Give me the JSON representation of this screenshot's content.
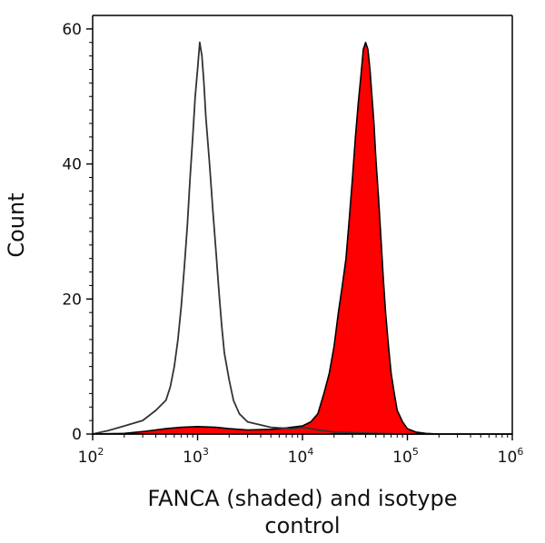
{
  "chart_data": {
    "type": "area",
    "xlabel_lines": [
      "FANCA (shaded) and isotype",
      "control"
    ],
    "ylabel": "Count",
    "x_scale": "log10",
    "xlim": [
      100,
      1000000
    ],
    "ylim": [
      0,
      62
    ],
    "grid": false,
    "x_ticks": [
      {
        "base": "10",
        "exp": "2"
      },
      {
        "base": "10",
        "exp": "3"
      },
      {
        "base": "10",
        "exp": "4"
      },
      {
        "base": "10",
        "exp": "5"
      },
      {
        "base": "10",
        "exp": "6"
      }
    ],
    "y_ticks": [
      "0",
      "20",
      "40",
      "60"
    ],
    "series": [
      {
        "style": "shaded",
        "fill": "#ff0000",
        "stroke": "#000000",
        "points": [
          [
            100,
            0
          ],
          [
            200,
            0.1
          ],
          [
            316,
            0.4
          ],
          [
            500,
            0.8
          ],
          [
            700,
            1.0
          ],
          [
            1000,
            1.1
          ],
          [
            1500,
            1.0
          ],
          [
            2000,
            0.8
          ],
          [
            3000,
            0.6
          ],
          [
            5000,
            0.7
          ],
          [
            7000,
            0.9
          ],
          [
            10000,
            1.2
          ],
          [
            12000,
            1.8
          ],
          [
            14000,
            3.0
          ],
          [
            16000,
            6
          ],
          [
            18000,
            9
          ],
          [
            20000,
            13
          ],
          [
            22000,
            18
          ],
          [
            24000,
            22
          ],
          [
            26000,
            26
          ],
          [
            28000,
            32
          ],
          [
            30000,
            38
          ],
          [
            32000,
            44
          ],
          [
            34000,
            49
          ],
          [
            36000,
            53
          ],
          [
            38000,
            57
          ],
          [
            40000,
            58
          ],
          [
            42000,
            57
          ],
          [
            44000,
            54
          ],
          [
            46000,
            50
          ],
          [
            48000,
            46
          ],
          [
            50000,
            41
          ],
          [
            53000,
            35
          ],
          [
            56000,
            29
          ],
          [
            59000,
            23
          ],
          [
            62000,
            18
          ],
          [
            66000,
            13
          ],
          [
            70000,
            9
          ],
          [
            75000,
            6
          ],
          [
            80000,
            3.5
          ],
          [
            90000,
            1.8
          ],
          [
            100000,
            0.8
          ],
          [
            120000,
            0.3
          ],
          [
            150000,
            0.1
          ],
          [
            200000,
            0
          ],
          [
            1000000,
            0
          ]
        ]
      },
      {
        "style": "outline",
        "fill": "none",
        "stroke": "#333333",
        "points": [
          [
            100,
            0
          ],
          [
            140,
            0.5
          ],
          [
            200,
            1.2
          ],
          [
            300,
            2.0
          ],
          [
            400,
            3.5
          ],
          [
            500,
            5
          ],
          [
            550,
            7
          ],
          [
            600,
            10
          ],
          [
            650,
            14
          ],
          [
            700,
            19
          ],
          [
            750,
            25
          ],
          [
            800,
            31
          ],
          [
            850,
            38
          ],
          [
            900,
            44
          ],
          [
            950,
            50
          ],
          [
            1000,
            54
          ],
          [
            1050,
            58
          ],
          [
            1100,
            56
          ],
          [
            1150,
            52
          ],
          [
            1200,
            47
          ],
          [
            1300,
            40
          ],
          [
            1400,
            33
          ],
          [
            1500,
            27
          ],
          [
            1600,
            21
          ],
          [
            1700,
            16
          ],
          [
            1800,
            12
          ],
          [
            2000,
            8
          ],
          [
            2200,
            5
          ],
          [
            2500,
            3
          ],
          [
            3000,
            1.8
          ],
          [
            5000,
            1.0
          ],
          [
            8000,
            0.8
          ],
          [
            10000,
            1.0
          ],
          [
            14000,
            0.6
          ],
          [
            20000,
            0.3
          ],
          [
            50000,
            0.1
          ],
          [
            100000,
            0
          ],
          [
            1000000,
            0
          ]
        ]
      }
    ]
  }
}
